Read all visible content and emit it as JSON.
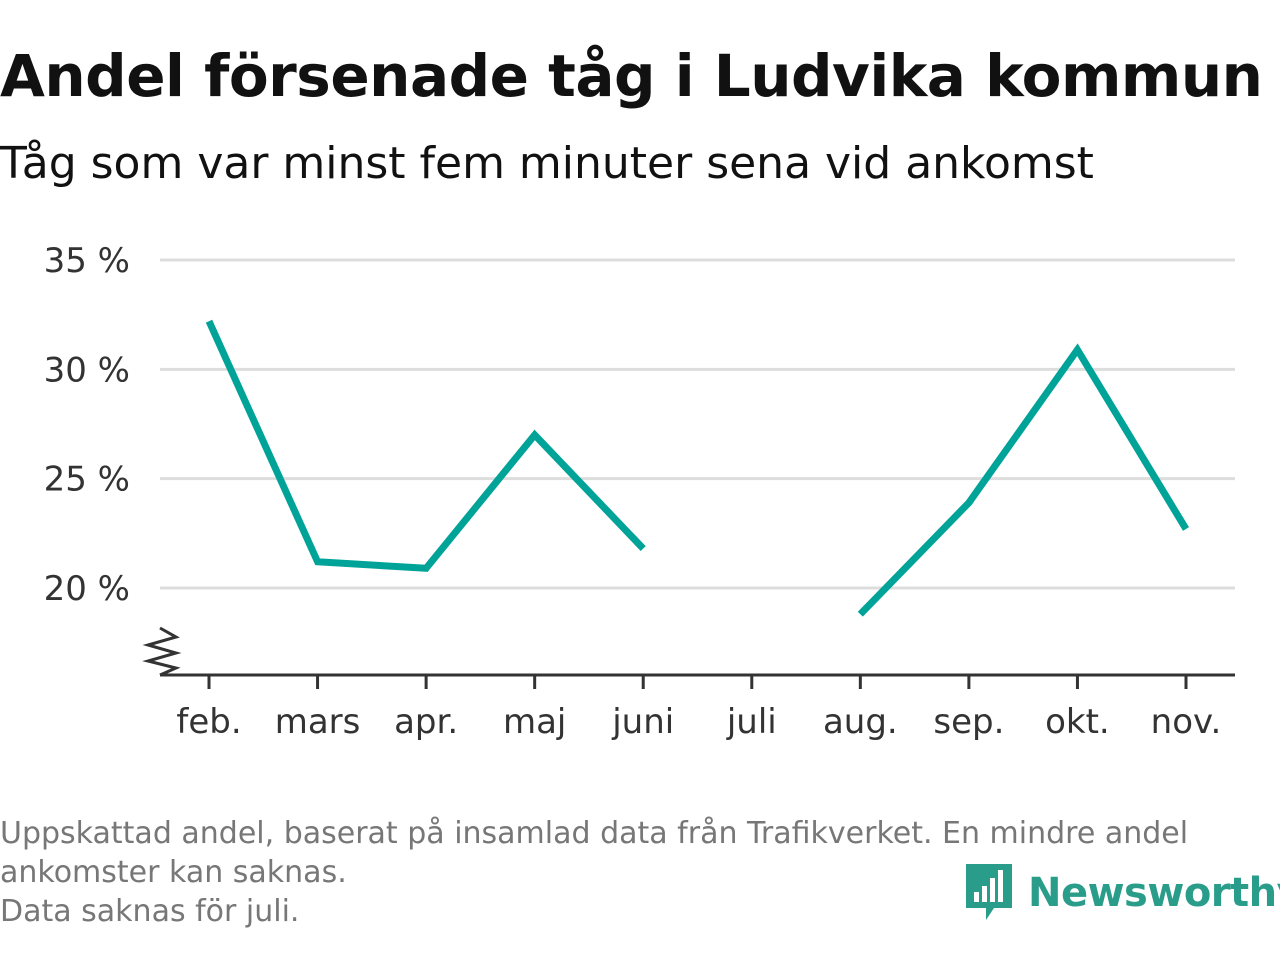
{
  "title": "Andel försenade tåg i Ludvika kommun",
  "subtitle": "Tåg som var minst fem minuter sena vid ankomst",
  "footnote": {
    "line1": "Uppskattad andel, baserat på insamlad data från Trafikverket. En mindre andel",
    "line2": "ankomster kan saknas.",
    "line3": "Data saknas för juli."
  },
  "brand": {
    "name": "Newsworthy",
    "logo_icon": "bar-chart-speech-bubble-icon",
    "color": "#2a9d8a"
  },
  "chart_data": {
    "type": "line",
    "title": "Andel försenade tåg i Ludvika kommun",
    "subtitle": "Tåg som var minst fem minuter sena vid ankomst",
    "xlabel": "",
    "ylabel": "",
    "categories": [
      "feb.",
      "mars",
      "apr.",
      "maj",
      "juni",
      "juli",
      "aug.",
      "sep.",
      "okt.",
      "nov."
    ],
    "series": [
      {
        "values": [
          32.2,
          21.2,
          20.9,
          27.0,
          21.8,
          null,
          18.8,
          23.9,
          30.9,
          22.7
        ],
        "color": "#00a398"
      }
    ],
    "y_ticks": [
      20,
      25,
      30,
      35
    ],
    "y_tick_labels": [
      "20 %",
      "25 %",
      "30 %",
      "35 %"
    ],
    "ylim": [
      16,
      35
    ],
    "y_axis_break": true,
    "grid": true,
    "legend": "none"
  }
}
